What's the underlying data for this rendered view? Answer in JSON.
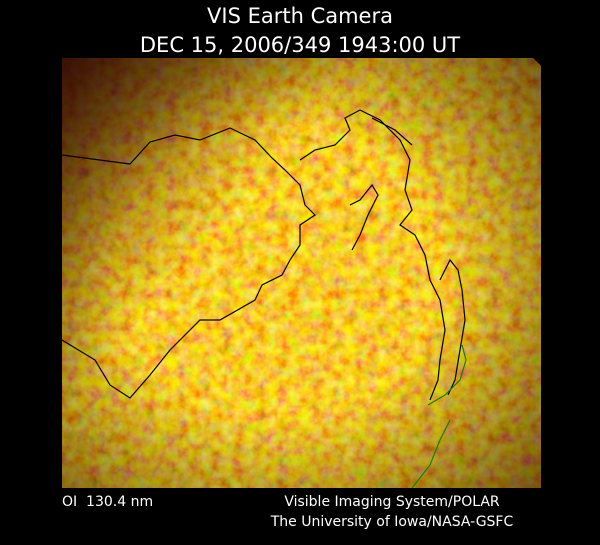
{
  "header": {
    "title": "VIS Earth Camera",
    "timestamp": "DEC 15, 2006/349 1943:00 UT"
  },
  "footer": {
    "wavelength": "OI  130.4 nm",
    "instrument": "Visible Imaging System/POLAR",
    "credit": "The University of Iowa/NASA-GSFC"
  }
}
